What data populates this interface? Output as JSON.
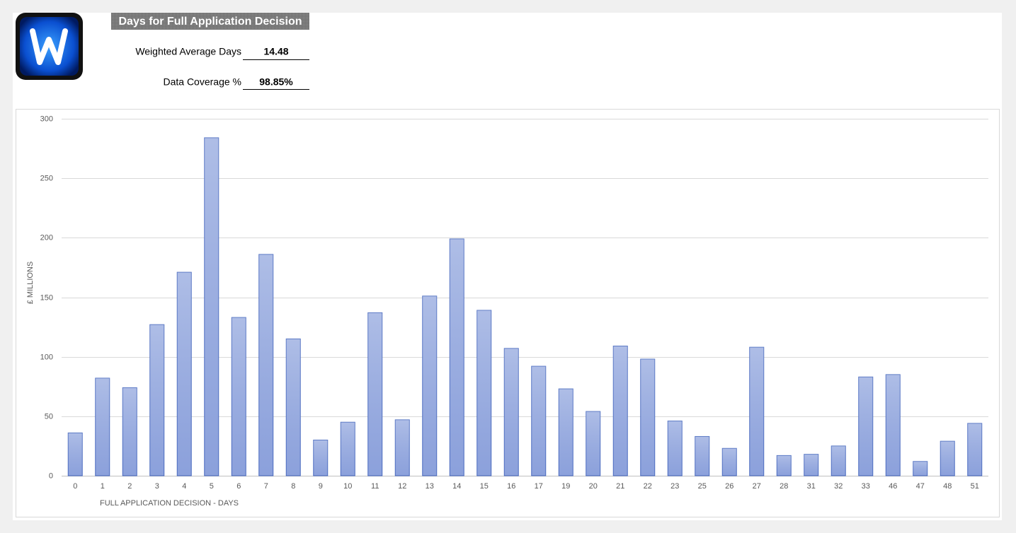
{
  "header": {
    "title": "Days for Full Application Decision",
    "metrics": [
      {
        "label": "Weighted Average Days",
        "value": "14.48"
      },
      {
        "label": "Data Coverage %",
        "value": "98.85%"
      }
    ]
  },
  "chart_data": {
    "type": "bar",
    "y_label": "£ MILLIONS",
    "x_label": "FULL APPLICATION DECISION - DAYS",
    "categories": [
      "0",
      "1",
      "2",
      "3",
      "4",
      "5",
      "6",
      "7",
      "8",
      "9",
      "10",
      "11",
      "12",
      "13",
      "14",
      "15",
      "16",
      "17",
      "19",
      "20",
      "21",
      "22",
      "23",
      "25",
      "26",
      "27",
      "28",
      "31",
      "32",
      "33",
      "46",
      "47",
      "48",
      "51"
    ],
    "values": [
      36,
      82,
      74,
      127,
      171,
      284,
      133,
      186,
      115,
      30,
      45,
      137,
      47,
      151,
      199,
      139,
      107,
      92,
      73,
      54,
      109,
      98,
      46,
      33,
      23,
      108,
      17,
      18,
      25,
      83,
      85,
      12,
      29,
      44
    ],
    "color": "#9aade0",
    "ylim": [
      0,
      300
    ],
    "yticks": [
      0,
      50,
      100,
      150,
      200,
      250,
      300
    ],
    "grid": true
  }
}
